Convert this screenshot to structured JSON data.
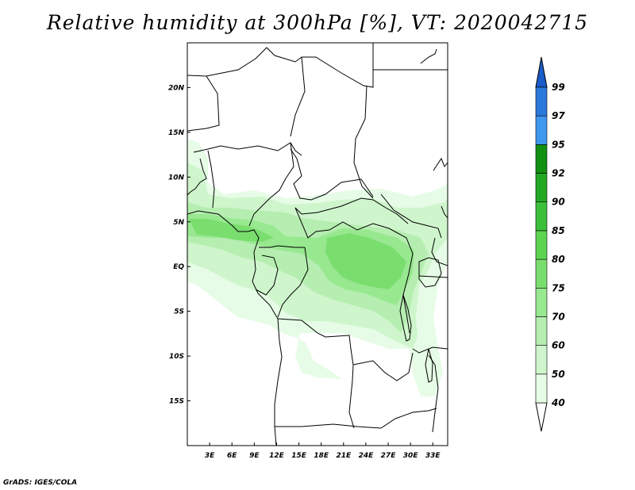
{
  "title": "Relative humidity at 300hPa [%], VT: 2020042715",
  "credit": "GrADS: IGES/COLA",
  "map": {
    "lon_range": [
      0,
      35
    ],
    "lat_range": [
      -20,
      25
    ],
    "lat_ticks": [
      {
        "value": 20,
        "label": "20N"
      },
      {
        "value": 15,
        "label": "15N"
      },
      {
        "value": 10,
        "label": "10N"
      },
      {
        "value": 5,
        "label": "5N"
      },
      {
        "value": 0,
        "label": "EQ"
      },
      {
        "value": -5,
        "label": "5S"
      },
      {
        "value": -10,
        "label": "10S"
      },
      {
        "value": -15,
        "label": "15S"
      }
    ],
    "lon_ticks": [
      {
        "value": 3,
        "label": "3E"
      },
      {
        "value": 6,
        "label": "6E"
      },
      {
        "value": 9,
        "label": "9E"
      },
      {
        "value": 12,
        "label": "12E"
      },
      {
        "value": 15,
        "label": "15E"
      },
      {
        "value": 18,
        "label": "18E"
      },
      {
        "value": 21,
        "label": "21E"
      },
      {
        "value": 24,
        "label": "24E"
      },
      {
        "value": 27,
        "label": "27E"
      },
      {
        "value": 30,
        "label": "30E"
      },
      {
        "value": 33,
        "label": "33E"
      }
    ]
  },
  "colorbar": {
    "levels": [
      {
        "label": "40",
        "color": "#e6fce6"
      },
      {
        "label": "50",
        "color": "#cff5cc"
      },
      {
        "label": "60",
        "color": "#b5eeb0"
      },
      {
        "label": "70",
        "color": "#98e890"
      },
      {
        "label": "75",
        "color": "#7ade6f"
      },
      {
        "label": "80",
        "color": "#5cd450"
      },
      {
        "label": "85",
        "color": "#3cc03c"
      },
      {
        "label": "90",
        "color": "#22a822"
      },
      {
        "label": "92",
        "color": "#129012"
      },
      {
        "label": "95",
        "color": "#3e98ee"
      },
      {
        "label": "97",
        "color": "#2a78dc"
      },
      {
        "label": "99",
        "color": "#1a5cc8"
      }
    ],
    "lower_extension_color": "#ffffff",
    "upper_extension_color": "#1a5cc8"
  },
  "humidity_fields": [
    {
      "level": "40",
      "color": "#e6fce6"
    },
    {
      "level": "50",
      "color": "#cff5cc"
    },
    {
      "level": "60",
      "color": "#b5eeb0"
    },
    {
      "level": "70",
      "color": "#98e890"
    },
    {
      "level": "75",
      "color": "#7ade6f"
    }
  ]
}
